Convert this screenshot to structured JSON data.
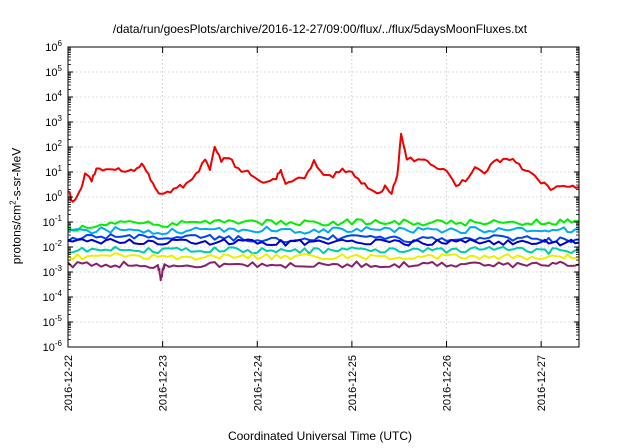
{
  "chart_data": {
    "type": "line",
    "title": "/data/run/goesPlots/archive/2016-12-27/09:00/flux/../flux/5daysMoonFluxes.txt",
    "xlabel": "Coordinated Universal Time (UTC)",
    "ylabel": {
      "prefix": "protons/cm",
      "exponent": "2",
      "suffix": "-s-sr-MeV"
    },
    "x_ticks": [
      "2016-12-22",
      "2016-12-23",
      "2016-12-24",
      "2016-12-25",
      "2016-12-26",
      "2016-12-27"
    ],
    "x_range_days": [
      0,
      5.4
    ],
    "y_scale": "log",
    "ylim": [
      1e-06,
      1000000.0
    ],
    "y_ticks": [
      {
        "base": "10",
        "exp": "-6"
      },
      {
        "base": "10",
        "exp": "-5"
      },
      {
        "base": "10",
        "exp": "-4"
      },
      {
        "base": "10",
        "exp": "-3"
      },
      {
        "base": "10",
        "exp": "-2"
      },
      {
        "base": "10",
        "exp": "-1"
      },
      {
        "base": "10",
        "exp": "0"
      },
      {
        "base": "10",
        "exp": "1"
      },
      {
        "base": "10",
        "exp": "2"
      },
      {
        "base": "10",
        "exp": "3"
      },
      {
        "base": "10",
        "exp": "4"
      },
      {
        "base": "10",
        "exp": "5"
      },
      {
        "base": "10",
        "exp": "6"
      }
    ],
    "grid": true,
    "legend": "none",
    "series": [
      {
        "color": "#ee0000",
        "points": [
          [
            0.0,
            2.0
          ],
          [
            0.05,
            0.6
          ],
          [
            0.12,
            1.5
          ],
          [
            0.18,
            8
          ],
          [
            0.25,
            5
          ],
          [
            0.3,
            12
          ],
          [
            0.4,
            11
          ],
          [
            0.5,
            14
          ],
          [
            0.6,
            10
          ],
          [
            0.7,
            12
          ],
          [
            0.78,
            22
          ],
          [
            0.85,
            8
          ],
          [
            0.92,
            2
          ],
          [
            0.98,
            1.3
          ],
          [
            1.05,
            1.5
          ],
          [
            1.15,
            2.5
          ],
          [
            1.25,
            3
          ],
          [
            1.35,
            8
          ],
          [
            1.45,
            30
          ],
          [
            1.5,
            10
          ],
          [
            1.55,
            120
          ],
          [
            1.62,
            30
          ],
          [
            1.7,
            40
          ],
          [
            1.8,
            12
          ],
          [
            1.9,
            10
          ],
          [
            2.0,
            5
          ],
          [
            2.1,
            4
          ],
          [
            2.2,
            6
          ],
          [
            2.25,
            12
          ],
          [
            2.3,
            4
          ],
          [
            2.4,
            5
          ],
          [
            2.5,
            6
          ],
          [
            2.6,
            25
          ],
          [
            2.7,
            9
          ],
          [
            2.8,
            7
          ],
          [
            2.9,
            12
          ],
          [
            3.0,
            10
          ],
          [
            3.1,
            4
          ],
          [
            3.2,
            2
          ],
          [
            3.3,
            1.5
          ],
          [
            3.35,
            3
          ],
          [
            3.42,
            1.4
          ],
          [
            3.48,
            7
          ],
          [
            3.52,
            300
          ],
          [
            3.58,
            35
          ],
          [
            3.7,
            30
          ],
          [
            3.8,
            25
          ],
          [
            3.9,
            15
          ],
          [
            4.0,
            10
          ],
          [
            4.1,
            3
          ],
          [
            4.2,
            5
          ],
          [
            4.3,
            14
          ],
          [
            4.4,
            8
          ],
          [
            4.5,
            25
          ],
          [
            4.6,
            30
          ],
          [
            4.7,
            28
          ],
          [
            4.8,
            15
          ],
          [
            4.9,
            8
          ],
          [
            5.0,
            4
          ],
          [
            5.1,
            2
          ],
          [
            5.2,
            3
          ],
          [
            5.3,
            3
          ],
          [
            5.4,
            2.5
          ]
        ]
      },
      {
        "color": "#00ee00",
        "points": [
          [
            0.0,
            0.05
          ],
          [
            0.5,
            0.1
          ],
          [
            1.0,
            0.08
          ],
          [
            1.5,
            0.1
          ],
          [
            2.0,
            0.1
          ],
          [
            2.5,
            0.09
          ],
          [
            3.0,
            0.1
          ],
          [
            3.5,
            0.1
          ],
          [
            4.0,
            0.09
          ],
          [
            4.5,
            0.1
          ],
          [
            5.0,
            0.1
          ],
          [
            5.4,
            0.11
          ]
        ]
      },
      {
        "color": "#00aaee",
        "points": [
          [
            0.0,
            0.04
          ],
          [
            0.5,
            0.05
          ],
          [
            1.0,
            0.04
          ],
          [
            1.5,
            0.05
          ],
          [
            2.0,
            0.05
          ],
          [
            2.5,
            0.045
          ],
          [
            3.0,
            0.05
          ],
          [
            3.5,
            0.05
          ],
          [
            4.0,
            0.045
          ],
          [
            4.5,
            0.05
          ],
          [
            5.0,
            0.05
          ],
          [
            5.4,
            0.05
          ]
        ]
      },
      {
        "color": "#0044ee",
        "points": [
          [
            0.0,
            0.02
          ],
          [
            0.5,
            0.03
          ],
          [
            1.0,
            0.02
          ],
          [
            1.5,
            0.025
          ],
          [
            2.0,
            0.02
          ],
          [
            2.5,
            0.02
          ],
          [
            3.0,
            0.025
          ],
          [
            3.5,
            0.02
          ],
          [
            4.0,
            0.02
          ],
          [
            4.5,
            0.025
          ],
          [
            5.0,
            0.02
          ],
          [
            5.4,
            0.02
          ]
        ]
      },
      {
        "color": "#0000cc",
        "points": [
          [
            0.0,
            0.015
          ],
          [
            0.5,
            0.018
          ],
          [
            1.0,
            0.015
          ],
          [
            1.5,
            0.016
          ],
          [
            2.0,
            0.015
          ],
          [
            2.5,
            0.015
          ],
          [
            3.0,
            0.016
          ],
          [
            3.5,
            0.015
          ],
          [
            4.0,
            0.015
          ],
          [
            4.5,
            0.016
          ],
          [
            5.0,
            0.015
          ],
          [
            5.4,
            0.015
          ]
        ]
      },
      {
        "color": "#00ccaa",
        "points": [
          [
            0.0,
            0.007
          ],
          [
            0.5,
            0.008
          ],
          [
            1.0,
            0.007
          ],
          [
            1.5,
            0.008
          ],
          [
            2.0,
            0.007
          ],
          [
            2.5,
            0.007
          ],
          [
            3.0,
            0.008
          ],
          [
            3.5,
            0.007
          ],
          [
            4.0,
            0.007
          ],
          [
            4.5,
            0.008
          ],
          [
            5.0,
            0.007
          ],
          [
            5.4,
            0.007
          ]
        ]
      },
      {
        "color": "#eeee00",
        "points": [
          [
            0.0,
            0.004
          ],
          [
            0.5,
            0.0045
          ],
          [
            1.0,
            0.004
          ],
          [
            1.5,
            0.004
          ],
          [
            2.0,
            0.004
          ],
          [
            2.5,
            0.004
          ],
          [
            3.0,
            0.004
          ],
          [
            3.5,
            0.004
          ],
          [
            4.0,
            0.004
          ],
          [
            4.5,
            0.004
          ],
          [
            5.0,
            0.004
          ],
          [
            5.4,
            0.004
          ]
        ]
      },
      {
        "color": "#882266",
        "points": [
          [
            0.0,
            0.002
          ],
          [
            0.5,
            0.002
          ],
          [
            0.95,
            0.0018
          ],
          [
            0.98,
            0.0006
          ],
          [
            1.02,
            0.0018
          ],
          [
            1.5,
            0.002
          ],
          [
            2.0,
            0.0019
          ],
          [
            2.5,
            0.002
          ],
          [
            3.0,
            0.002
          ],
          [
            3.5,
            0.002
          ],
          [
            4.0,
            0.002
          ],
          [
            4.5,
            0.002
          ],
          [
            5.0,
            0.002
          ],
          [
            5.4,
            0.002
          ]
        ]
      }
    ]
  }
}
